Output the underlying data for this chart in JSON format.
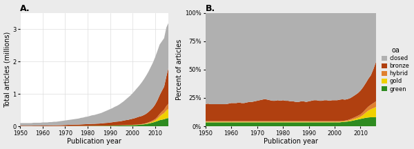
{
  "years": [
    1950,
    1951,
    1952,
    1953,
    1954,
    1955,
    1956,
    1957,
    1958,
    1959,
    1960,
    1961,
    1962,
    1963,
    1964,
    1965,
    1966,
    1967,
    1968,
    1969,
    1970,
    1971,
    1972,
    1973,
    1974,
    1975,
    1976,
    1977,
    1978,
    1979,
    1980,
    1981,
    1982,
    1983,
    1984,
    1985,
    1986,
    1987,
    1988,
    1989,
    1990,
    1991,
    1992,
    1993,
    1994,
    1995,
    1996,
    1997,
    1998,
    1999,
    2000,
    2001,
    2002,
    2003,
    2004,
    2005,
    2006,
    2007,
    2008,
    2009,
    2010,
    2011,
    2012,
    2013,
    2014,
    2015,
    2016
  ],
  "total": [
    0.1,
    0.1,
    0.1,
    0.1,
    0.1,
    0.1,
    0.11,
    0.11,
    0.11,
    0.11,
    0.12,
    0.12,
    0.12,
    0.13,
    0.13,
    0.14,
    0.14,
    0.15,
    0.16,
    0.17,
    0.18,
    0.19,
    0.2,
    0.21,
    0.22,
    0.23,
    0.24,
    0.26,
    0.27,
    0.29,
    0.3,
    0.32,
    0.34,
    0.35,
    0.37,
    0.39,
    0.41,
    0.44,
    0.47,
    0.5,
    0.53,
    0.56,
    0.6,
    0.63,
    0.67,
    0.72,
    0.77,
    0.83,
    0.89,
    0.95,
    1.02,
    1.1,
    1.18,
    1.26,
    1.35,
    1.45,
    1.56,
    1.68,
    1.82,
    1.96,
    2.13,
    2.32,
    2.52,
    2.62,
    2.72,
    3.05,
    3.2
  ],
  "green_pct": [
    3.5,
    3.5,
    3.5,
    3.5,
    3.5,
    3.5,
    3.5,
    3.5,
    3.5,
    3.5,
    3.5,
    3.5,
    3.5,
    3.5,
    3.5,
    3.5,
    3.5,
    3.5,
    3.5,
    3.5,
    3.5,
    3.5,
    3.5,
    3.5,
    3.5,
    3.5,
    3.5,
    3.5,
    3.5,
    3.5,
    3.5,
    3.5,
    3.5,
    3.5,
    3.5,
    3.5,
    3.5,
    3.5,
    3.5,
    3.5,
    3.5,
    3.5,
    3.5,
    3.5,
    3.5,
    3.5,
    3.5,
    3.5,
    3.5,
    3.5,
    3.5,
    3.5,
    3.5,
    3.8,
    4.0,
    4.2,
    4.5,
    5.0,
    5.5,
    6.0,
    6.5,
    7.0,
    7.5,
    7.8,
    8.0,
    8.0,
    8.0
  ],
  "gold_pct": [
    0.5,
    0.5,
    0.5,
    0.5,
    0.5,
    0.5,
    0.5,
    0.5,
    0.5,
    0.5,
    0.5,
    0.5,
    0.5,
    0.5,
    0.5,
    0.5,
    0.5,
    0.5,
    0.5,
    0.5,
    0.5,
    0.5,
    0.5,
    0.5,
    0.5,
    0.5,
    0.5,
    0.5,
    0.5,
    0.5,
    0.5,
    0.5,
    0.5,
    0.5,
    0.5,
    0.5,
    0.5,
    0.5,
    0.5,
    0.5,
    0.5,
    0.5,
    0.5,
    0.5,
    0.5,
    0.5,
    0.5,
    0.5,
    0.5,
    0.5,
    0.5,
    0.5,
    0.5,
    0.5,
    0.5,
    0.5,
    0.8,
    1.0,
    1.2,
    1.5,
    2.0,
    3.0,
    4.5,
    6.0,
    7.0,
    8.0,
    9.0
  ],
  "hybrid_pct": [
    0.5,
    0.5,
    0.5,
    0.5,
    0.5,
    0.5,
    0.5,
    0.5,
    0.5,
    0.5,
    0.5,
    0.5,
    0.5,
    0.5,
    0.5,
    0.5,
    0.5,
    0.5,
    0.5,
    0.5,
    0.5,
    0.5,
    0.5,
    0.5,
    0.5,
    0.5,
    0.5,
    0.5,
    0.5,
    0.5,
    0.5,
    0.5,
    0.5,
    0.5,
    0.5,
    0.5,
    0.5,
    0.5,
    0.5,
    0.5,
    0.5,
    0.5,
    0.5,
    0.5,
    0.5,
    0.5,
    0.5,
    0.5,
    0.5,
    0.5,
    0.5,
    0.5,
    0.5,
    0.5,
    0.5,
    0.8,
    1.0,
    1.2,
    1.5,
    1.8,
    2.0,
    2.5,
    3.0,
    3.5,
    4.0,
    4.5,
    5.0
  ],
  "bronze_pct": [
    15.0,
    15.5,
    15.0,
    15.0,
    15.0,
    15.0,
    15.0,
    15.0,
    15.0,
    15.5,
    16.0,
    16.0,
    16.0,
    16.5,
    16.0,
    16.0,
    16.5,
    17.0,
    17.0,
    17.5,
    18.0,
    18.5,
    19.0,
    19.5,
    19.0,
    18.5,
    18.0,
    18.0,
    18.5,
    18.0,
    18.5,
    18.0,
    18.0,
    17.5,
    17.5,
    17.0,
    17.0,
    17.5,
    17.5,
    17.0,
    17.5,
    18.0,
    18.5,
    18.5,
    18.0,
    18.0,
    18.5,
    18.5,
    18.0,
    18.5,
    18.5,
    18.5,
    19.0,
    19.0,
    18.5,
    18.5,
    18.5,
    19.0,
    19.5,
    20.0,
    21.0,
    22.0,
    23.0,
    24.5,
    26.0,
    30.0,
    35.0
  ],
  "colors": {
    "closed": "#b0b0b0",
    "bronze": "#b04010",
    "hybrid": "#e08030",
    "gold": "#f0d000",
    "green": "#2e8b20"
  },
  "label_A": "A.",
  "label_B": "B.",
  "xlabel": "Publication year",
  "ylabel_A": "Total articles (millions)",
  "ylabel_B": "Percent of articles",
  "legend_title": "oa",
  "legend_labels": [
    "closed",
    "bronze",
    "hybrid",
    "gold",
    "green"
  ],
  "yticks_A": [
    0,
    1,
    2,
    3
  ],
  "yticks_B": [
    0,
    25,
    50,
    75,
    100
  ],
  "xlim": [
    1950,
    2016
  ],
  "ylim_A": [
    0,
    3.5
  ],
  "xticks": [
    1950,
    1960,
    1970,
    1980,
    1990,
    2000,
    2010
  ],
  "background_color": "#ebebeb",
  "plot_bg": "#ffffff"
}
